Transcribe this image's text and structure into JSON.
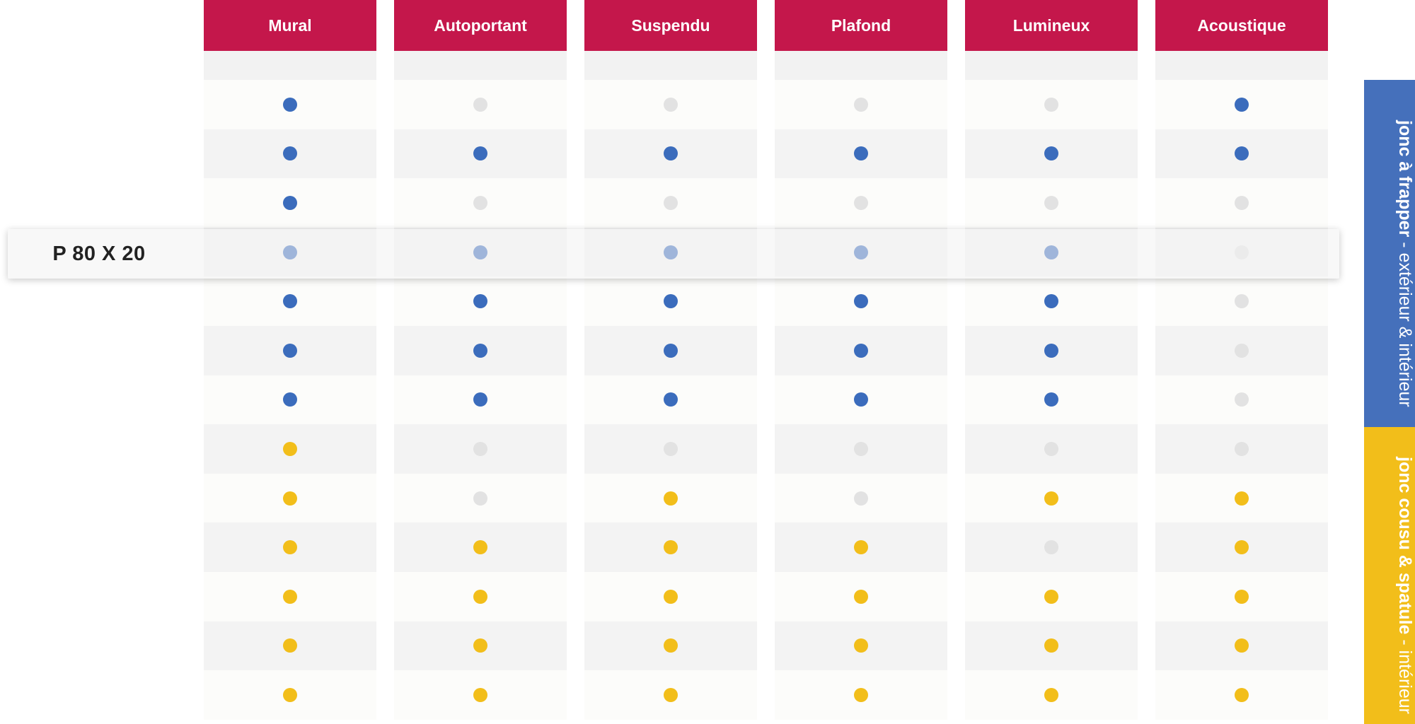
{
  "colors": {
    "header_bg": "#c4174b",
    "cell_light": "#fcfcfa",
    "cell_grey": "#f3f3f3",
    "spacer": "#f2f2f2",
    "dot_blue": "#3b6cbc",
    "dot_yellow": "#f2be1a",
    "dot_off": "#e2e2e2",
    "band_blue": "#4570bb",
    "band_yellow": "#f2be1a"
  },
  "columns": [
    {
      "label": "Mural",
      "values": [
        "blue",
        "blue",
        "blue",
        "blue",
        "blue",
        "blue",
        "blue",
        "yellow",
        "yellow",
        "yellow",
        "yellow",
        "yellow",
        "yellow"
      ]
    },
    {
      "label": "Autoportant",
      "values": [
        "off",
        "blue",
        "off",
        "blue",
        "blue",
        "blue",
        "blue",
        "off",
        "off",
        "yellow",
        "yellow",
        "yellow",
        "yellow"
      ]
    },
    {
      "label": "Suspendu",
      "values": [
        "off",
        "blue",
        "off",
        "blue",
        "blue",
        "blue",
        "blue",
        "off",
        "yellow",
        "yellow",
        "yellow",
        "yellow",
        "yellow"
      ]
    },
    {
      "label": "Plafond",
      "values": [
        "off",
        "blue",
        "off",
        "blue",
        "blue",
        "blue",
        "blue",
        "off",
        "off",
        "yellow",
        "yellow",
        "yellow",
        "yellow"
      ]
    },
    {
      "label": "Lumineux",
      "values": [
        "off",
        "blue",
        "off",
        "blue",
        "blue",
        "blue",
        "blue",
        "off",
        "yellow",
        "off",
        "yellow",
        "yellow",
        "yellow"
      ]
    },
    {
      "label": "Acoustique",
      "values": [
        "blue",
        "blue",
        "off",
        "off",
        "off",
        "off",
        "off",
        "off",
        "yellow",
        "yellow",
        "yellow",
        "yellow",
        "yellow"
      ]
    }
  ],
  "highlight_row": {
    "label": "P 80 X 20",
    "row_index": 3
  },
  "side_bands": [
    {
      "strong": "jonc à frapper",
      "light": " - extérieur & intérieur",
      "color": "blue"
    },
    {
      "strong": "jonc cousu & spatule",
      "light": " - intérieur",
      "color": "yellow"
    }
  ]
}
